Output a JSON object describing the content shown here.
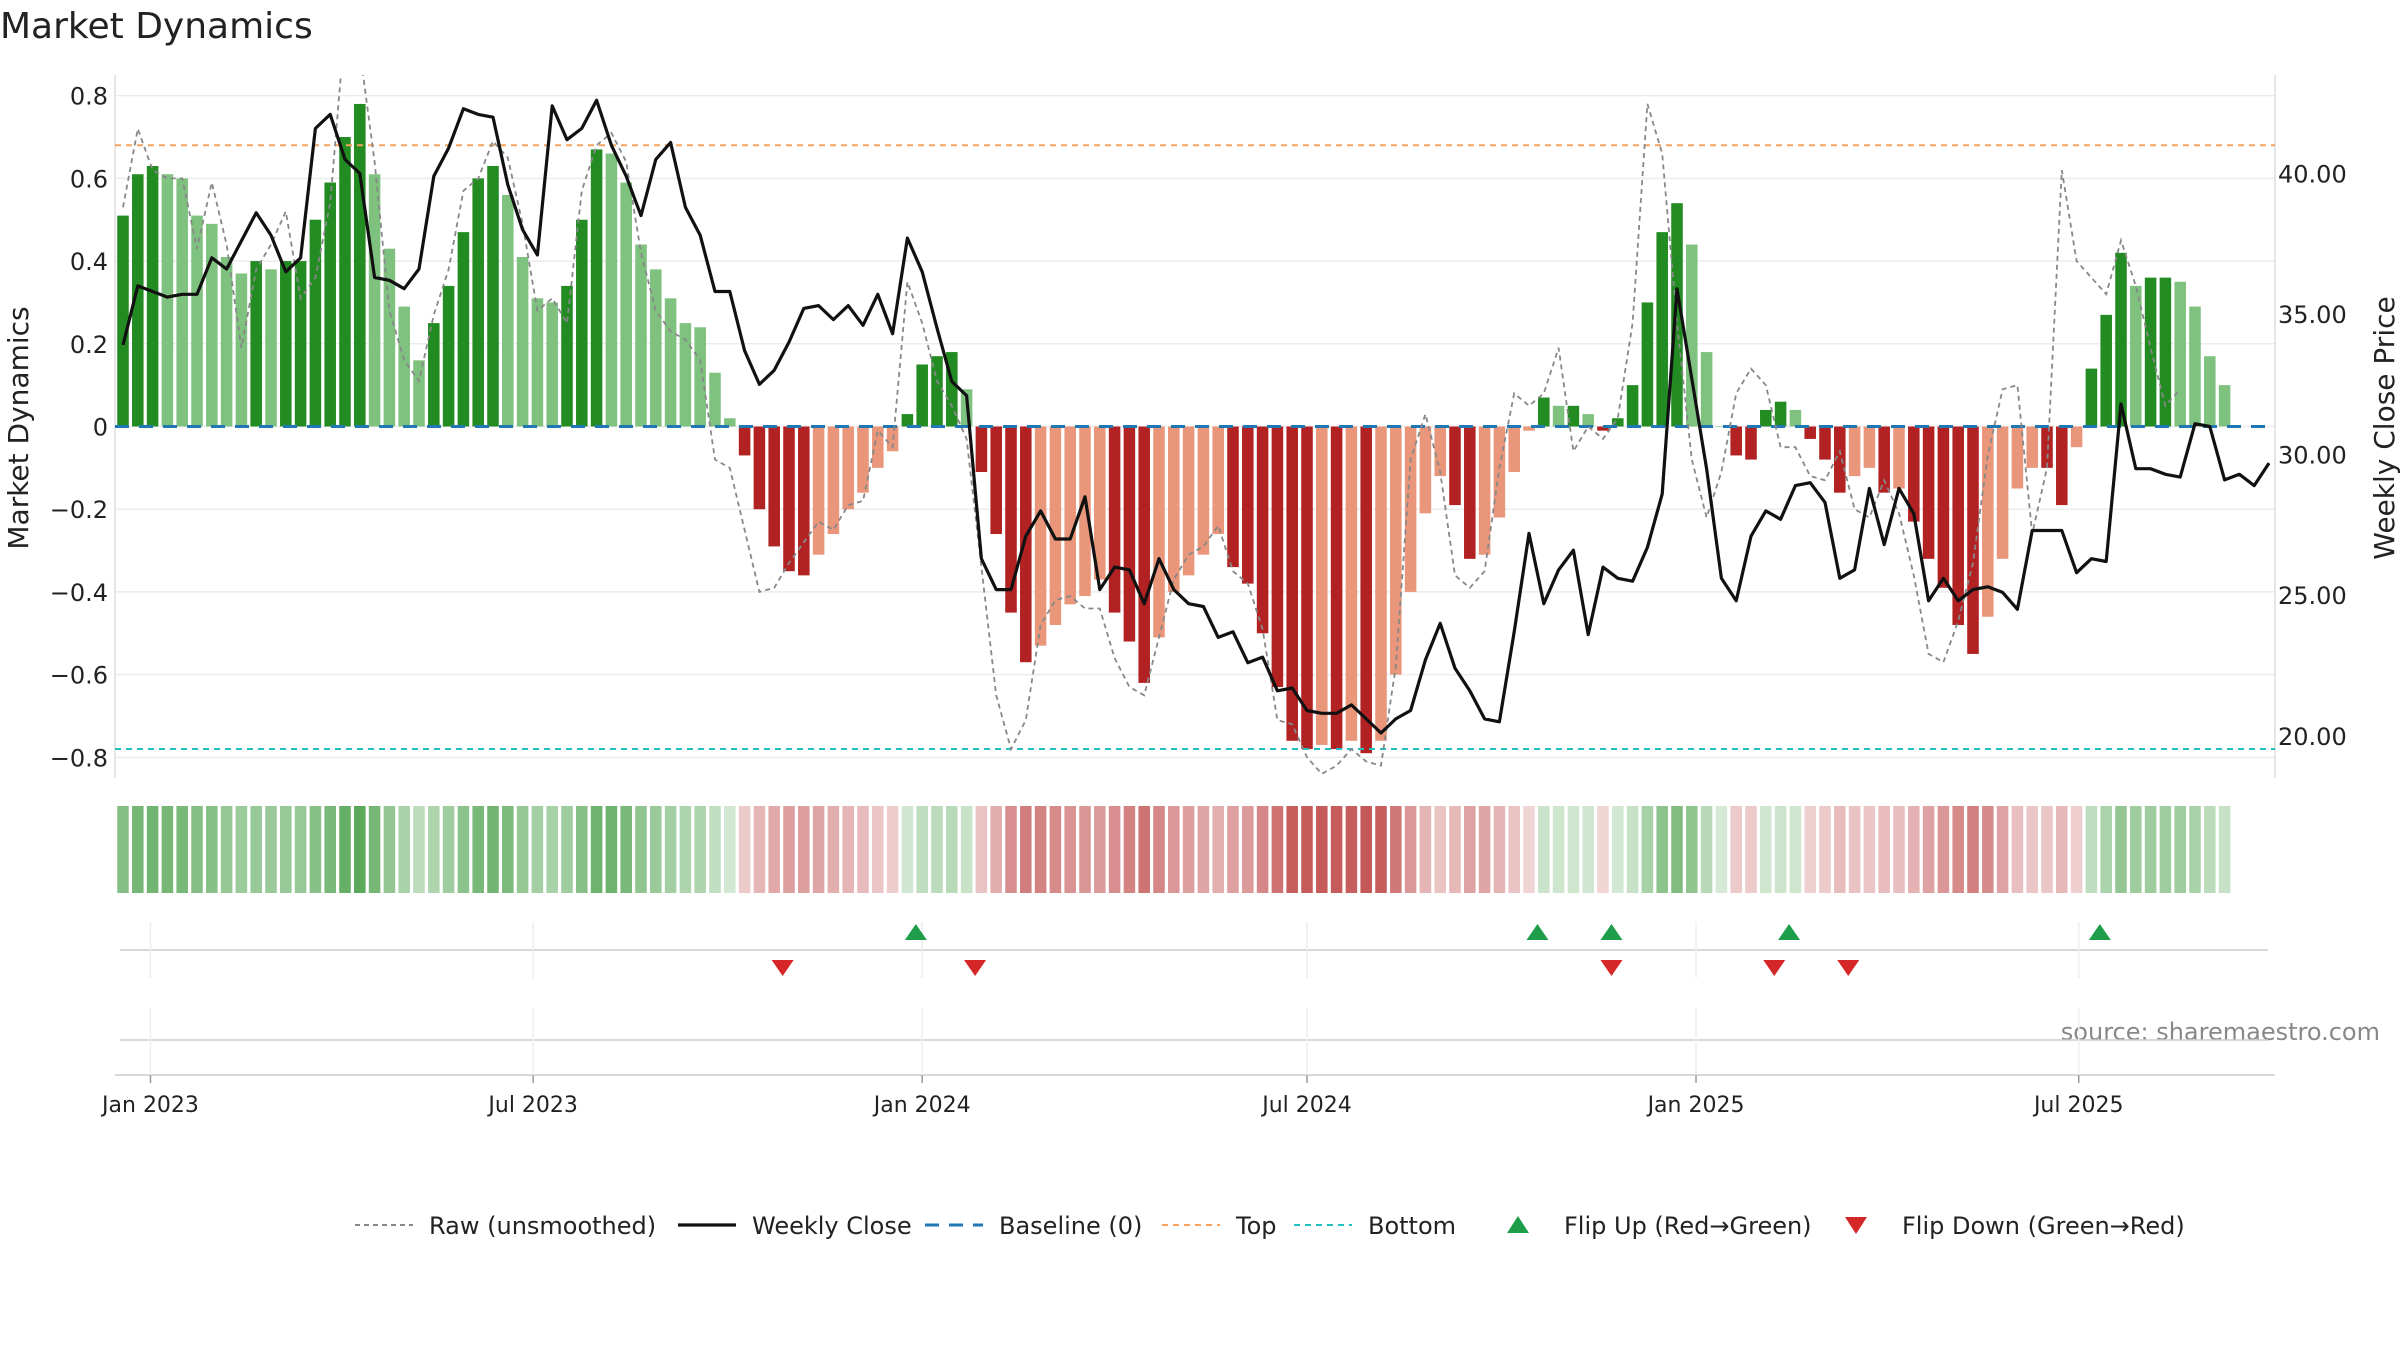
{
  "chart_data": {
    "type": "bar",
    "title": "Market Dynamics",
    "source": "source: sharemaestro.com",
    "ylabel": "Market Dynamics",
    "ylabel_right": "Weekly Close Price",
    "ylim": [
      -0.85,
      0.85
    ],
    "ylim_right": [
      18.5,
      43.5
    ],
    "y_ticks": [
      -0.8,
      -0.6,
      -0.4,
      -0.2,
      0,
      0.2,
      0.4,
      0.6,
      0.8
    ],
    "y_tick_labels": [
      "−0.8",
      "−0.6",
      "−0.4",
      "−0.2",
      "0",
      "0.2",
      "0.4",
      "0.6",
      "0.8"
    ],
    "y_ticks_right": [
      20,
      25,
      30,
      35,
      40
    ],
    "y_tick_labels_right": [
      "20.00",
      "25.00",
      "30.00",
      "35.00",
      "40.00"
    ],
    "x_start": "2022-12-19",
    "x_ticks": [
      "2023-01-01",
      "2023-07-01",
      "2024-01-01",
      "2024-07-01",
      "2025-01-01",
      "2025-07-01"
    ],
    "x_tick_labels": [
      "Jan 2023",
      "Jul 2023",
      "Jan 2024",
      "Jul 2024",
      "Jan 2025",
      "Jul 2025"
    ],
    "top_line": 0.68,
    "bottom_line": -0.78,
    "colors": {
      "up_strong": "#228b22",
      "up_weak": "#7fc27f",
      "down_strong": "#b22222",
      "down_weak": "#e9967a",
      "raw": "#888888",
      "close": "#111111",
      "baseline": "#1f77b4",
      "top": "#f4a460",
      "bottom": "#20c0c0",
      "flip_up": "#1e9e4a",
      "flip_down": "#d62728"
    },
    "momentum": [
      0.51,
      0.61,
      0.63,
      0.61,
      0.6,
      0.51,
      0.49,
      0.41,
      0.37,
      0.4,
      0.38,
      0.4,
      0.4,
      0.5,
      0.59,
      0.7,
      0.78,
      0.61,
      0.43,
      0.29,
      0.16,
      0.25,
      0.34,
      0.47,
      0.6,
      0.63,
      0.56,
      0.41,
      0.31,
      0.3,
      0.34,
      0.5,
      0.67,
      0.66,
      0.59,
      0.44,
      0.38,
      0.31,
      0.25,
      0.24,
      0.13,
      0.02,
      -0.07,
      -0.2,
      -0.29,
      -0.35,
      -0.36,
      -0.31,
      -0.26,
      -0.2,
      -0.16,
      -0.1,
      -0.06,
      0.03,
      0.15,
      0.17,
      0.18,
      0.09,
      -0.11,
      -0.26,
      -0.45,
      -0.57,
      -0.53,
      -0.48,
      -0.43,
      -0.41,
      -0.37,
      -0.45,
      -0.52,
      -0.62,
      -0.51,
      -0.4,
      -0.36,
      -0.31,
      -0.26,
      -0.34,
      -0.38,
      -0.5,
      -0.63,
      -0.76,
      -0.78,
      -0.77,
      -0.78,
      -0.76,
      -0.79,
      -0.76,
      -0.6,
      -0.4,
      -0.21,
      -0.12,
      -0.19,
      -0.32,
      -0.31,
      -0.22,
      -0.11,
      -0.01,
      0.07,
      0.05,
      0.05,
      0.03,
      -0.01,
      0.02,
      0.1,
      0.3,
      0.47,
      0.54,
      0.44,
      0.18,
      0.0,
      -0.07,
      -0.08,
      0.04,
      0.06,
      0.04,
      -0.03,
      -0.08,
      -0.16,
      -0.12,
      -0.1,
      -0.16,
      -0.15,
      -0.23,
      -0.32,
      -0.39,
      -0.48,
      -0.55,
      -0.46,
      -0.32,
      -0.15,
      -0.1,
      -0.1,
      -0.19,
      -0.05,
      0.14,
      0.27,
      0.42,
      0.34,
      0.36,
      0.36,
      0.35,
      0.29,
      0.17,
      0.1
    ],
    "raw": [
      0.53,
      0.72,
      0.62,
      0.6,
      0.6,
      0.43,
      0.59,
      0.44,
      0.19,
      0.38,
      0.44,
      0.52,
      0.31,
      0.36,
      0.54,
      0.97,
      0.91,
      0.64,
      0.28,
      0.16,
      0.11,
      0.27,
      0.38,
      0.57,
      0.6,
      0.69,
      0.65,
      0.49,
      0.28,
      0.31,
      0.25,
      0.57,
      0.68,
      0.71,
      0.64,
      0.42,
      0.28,
      0.23,
      0.21,
      0.16,
      -0.08,
      -0.1,
      -0.25,
      -0.4,
      -0.39,
      -0.33,
      -0.28,
      -0.23,
      -0.25,
      -0.19,
      -0.18,
      -0.01,
      -0.05,
      0.35,
      0.25,
      0.11,
      0.05,
      -0.03,
      -0.34,
      -0.65,
      -0.78,
      -0.71,
      -0.48,
      -0.42,
      -0.41,
      -0.44,
      -0.44,
      -0.56,
      -0.63,
      -0.65,
      -0.51,
      -0.37,
      -0.31,
      -0.29,
      -0.24,
      -0.35,
      -0.38,
      -0.49,
      -0.71,
      -0.72,
      -0.8,
      -0.84,
      -0.82,
      -0.78,
      -0.81,
      -0.82,
      -0.58,
      -0.08,
      0.03,
      -0.11,
      -0.36,
      -0.39,
      -0.35,
      -0.1,
      0.08,
      0.05,
      0.08,
      0.19,
      -0.06,
      0.0,
      -0.03,
      0.02,
      0.25,
      0.78,
      0.66,
      0.25,
      -0.08,
      -0.22,
      -0.11,
      0.08,
      0.14,
      0.1,
      -0.05,
      -0.05,
      -0.12,
      -0.13,
      -0.06,
      -0.2,
      -0.22,
      -0.13,
      -0.21,
      -0.36,
      -0.55,
      -0.57,
      -0.47,
      -0.33,
      -0.07,
      0.09,
      0.1,
      -0.26,
      -0.1,
      0.62,
      0.4,
      0.36,
      0.32,
      0.45,
      0.34,
      0.19,
      0.05,
      0.09
    ],
    "close": [
      33.9,
      36.0,
      35.8,
      35.6,
      35.7,
      35.7,
      37.0,
      36.6,
      37.6,
      38.6,
      37.8,
      36.5,
      37.0,
      41.6,
      42.1,
      40.5,
      40.0,
      36.3,
      36.2,
      35.9,
      36.6,
      39.9,
      40.9,
      42.3,
      42.1,
      42.0,
      39.6,
      38.0,
      37.1,
      42.4,
      41.2,
      41.6,
      42.6,
      41.0,
      39.9,
      38.5,
      40.5,
      41.1,
      38.8,
      37.8,
      35.8,
      35.8,
      33.7,
      32.5,
      33.0,
      34.0,
      35.2,
      35.3,
      34.8,
      35.3,
      34.6,
      35.7,
      34.3,
      37.7,
      36.5,
      34.5,
      32.6,
      32.1,
      26.3,
      25.2,
      25.2,
      27.1,
      28.0,
      27.0,
      27.0,
      28.5,
      25.2,
      26.0,
      25.9,
      24.7,
      26.3,
      25.2,
      24.7,
      24.6,
      23.5,
      23.7,
      22.6,
      22.8,
      21.6,
      21.7,
      20.9,
      20.8,
      20.8,
      21.1,
      20.6,
      20.1,
      20.6,
      20.9,
      22.7,
      24.0,
      22.4,
      21.6,
      20.6,
      20.5,
      23.7,
      27.2,
      24.7,
      25.9,
      26.6,
      23.6,
      26.0,
      25.6,
      25.5,
      26.7,
      28.6,
      35.9,
      32.7,
      29.5,
      25.6,
      24.8,
      27.1,
      28.0,
      27.7,
      28.9,
      29.0,
      28.3,
      25.6,
      25.9,
      28.8,
      26.8,
      28.8,
      27.9,
      24.8,
      25.6,
      24.8,
      25.2,
      25.3,
      25.1,
      24.5,
      27.3,
      27.3,
      27.3,
      25.8,
      26.3,
      26.2,
      31.8,
      29.5,
      29.5,
      29.3,
      29.2,
      31.1,
      31.0,
      29.1,
      29.3,
      28.9,
      29.7
    ],
    "regime_labels": "Green/red regime strip: one cell per weekly bar, hue follows momentum sign",
    "flips_up": [
      "2023-12-29",
      "2024-10-18",
      "2024-11-22",
      "2025-02-14",
      "2025-07-11"
    ],
    "flips_down": [
      "2023-10-27",
      "2024-01-26",
      "2024-11-22",
      "2025-02-07",
      "2025-03-14"
    ],
    "legend": [
      {
        "label": "Raw (unsmoothed)",
        "style": "raw"
      },
      {
        "label": "Weekly Close",
        "style": "close"
      },
      {
        "label": "Baseline (0)",
        "style": "baseline"
      },
      {
        "label": "Top",
        "style": "top"
      },
      {
        "label": "Bottom",
        "style": "bottom"
      },
      {
        "label": "Flip Up (Red→Green)",
        "style": "flip_up"
      },
      {
        "label": "Flip Down (Green→Red)",
        "style": "flip_down"
      }
    ]
  }
}
